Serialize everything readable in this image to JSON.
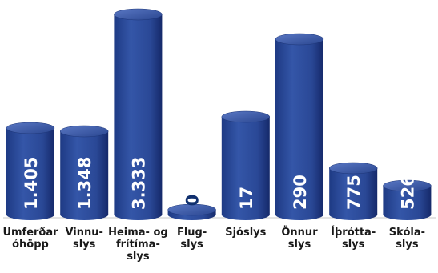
{
  "chart_data": {
    "type": "bar",
    "categories": [
      [
        "Umferðar",
        "óhöpp"
      ],
      [
        "Vinnu-",
        "slys"
      ],
      [
        "Heima- og",
        "frítíma-",
        "slys"
      ],
      [
        "Flug-",
        "slys"
      ],
      [
        "Sjóslys"
      ],
      [
        "Önnur",
        "slys"
      ],
      [
        "Íþrótta-",
        "slys"
      ],
      [
        "Skóla-",
        "slys"
      ]
    ],
    "values": [
      1405,
      1348,
      3333,
      0,
      17,
      290,
      775,
      526
    ],
    "value_labels": [
      "1.405",
      "1.348",
      "3.333",
      "0",
      "17",
      "290",
      "775",
      "526"
    ],
    "title": "",
    "xlabel": "",
    "ylabel": "",
    "bar_color": "#2e4d9c",
    "bar_color_dark": "#1c3578",
    "bar_color_light": "#6f8ad0"
  }
}
